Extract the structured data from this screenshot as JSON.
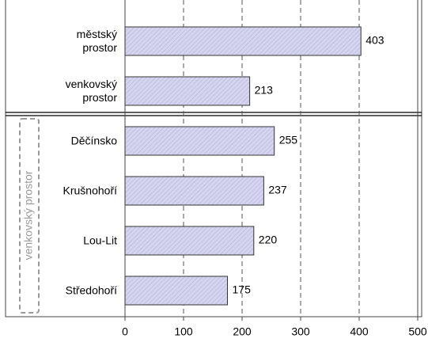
{
  "chart_data": {
    "type": "bar",
    "orientation": "horizontal",
    "categories": [
      "městský prostor",
      "venkovský prostor",
      "Děčínsko",
      "Krušnohoří",
      "Lou-Lit",
      "Středohoří"
    ],
    "values": [
      403,
      213,
      255,
      237,
      220,
      175
    ],
    "color": "#d4d4f0",
    "xlim": [
      0,
      500
    ],
    "xticks": [
      0,
      100,
      200,
      300,
      400,
      500
    ],
    "grid": true,
    "group_label": "venkovský prostor"
  }
}
